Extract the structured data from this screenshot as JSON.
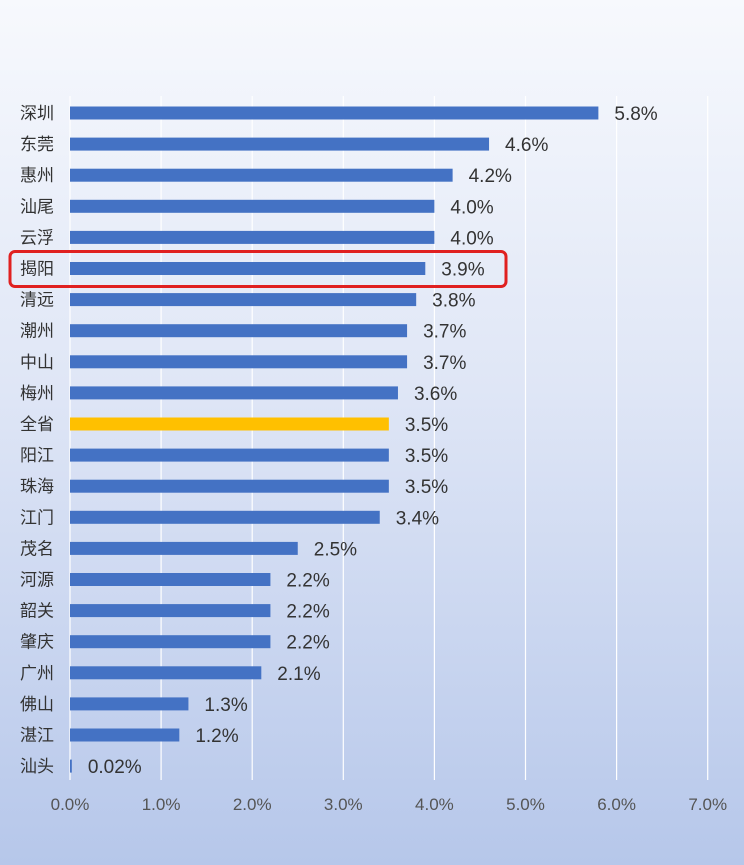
{
  "chart_data": {
    "type": "bar",
    "orientation": "horizontal",
    "categories": [
      "深圳",
      "东莞",
      "惠州",
      "汕尾",
      "云浮",
      "揭阳",
      "清远",
      "潮州",
      "中山",
      "梅州",
      "全省",
      "阳江",
      "珠海",
      "江门",
      "茂名",
      "河源",
      "韶关",
      "肇庆",
      "广州",
      "佛山",
      "湛江",
      "汕头"
    ],
    "values": [
      5.8,
      4.6,
      4.2,
      4.0,
      4.0,
      3.9,
      3.8,
      3.7,
      3.7,
      3.6,
      3.5,
      3.5,
      3.5,
      3.4,
      2.5,
      2.2,
      2.2,
      2.2,
      2.1,
      1.3,
      1.2,
      0.02
    ],
    "value_labels": [
      "5.8%",
      "4.6%",
      "4.2%",
      "4.0%",
      "4.0%",
      "3.9%",
      "3.8%",
      "3.7%",
      "3.7%",
      "3.6%",
      "3.5%",
      "3.5%",
      "3.5%",
      "3.4%",
      "2.5%",
      "2.2%",
      "2.2%",
      "2.2%",
      "2.1%",
      "1.3%",
      "1.2%",
      "0.02%"
    ],
    "xlim": [
      0,
      7
    ],
    "xticks": [
      "0.0%",
      "1.0%",
      "2.0%",
      "3.0%",
      "4.0%",
      "5.0%",
      "6.0%",
      "7.0%"
    ],
    "grid": true,
    "legend": "none",
    "colors": {
      "default": "#4472c4",
      "highlight": "#ffc000",
      "outline": "#e02020"
    },
    "highlight_category": "全省",
    "outlined_category": "揭阳"
  }
}
